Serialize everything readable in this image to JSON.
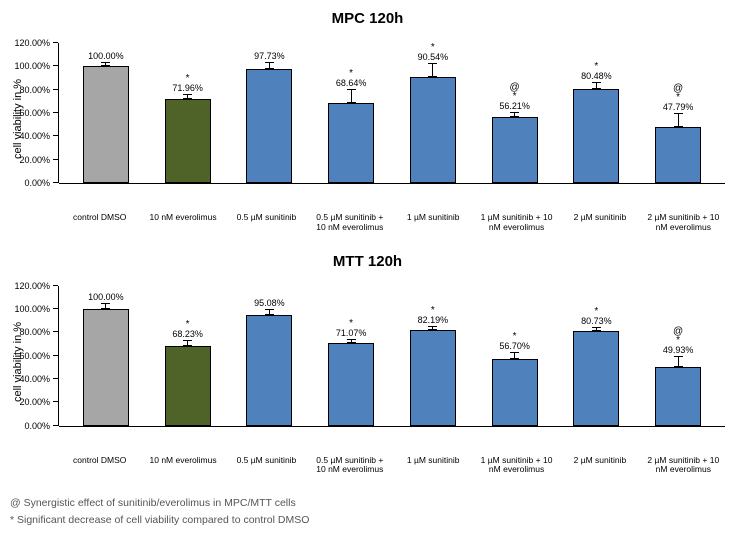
{
  "y_axis": {
    "label": "cell viability in %",
    "min": 0,
    "max": 120,
    "ticks": [
      0,
      20,
      40,
      60,
      80,
      100,
      120
    ],
    "tick_labels": [
      "0.00%",
      "20.00%",
      "40.00%",
      "60.00%",
      "80.00%",
      "100.00%",
      "120.00%"
    ]
  },
  "categories": [
    "control DMSO",
    "10 nM everolimus",
    "0.5 µM sunitinib",
    "0.5 µM sunitinib + 10 nM everolimus",
    "1 µM sunitinib",
    "1 µM sunitinib + 10 nM everolimus",
    "2 µM sunitinib",
    "2 µM sunitinib + 10 nM everolimus"
  ],
  "colors": {
    "control": "#a6a6a6",
    "everolimus": "#4f6228",
    "sunitinib": "#4f81bd",
    "combo": "#4f81bd",
    "bar_border": "#000000",
    "plot_bg": "#ffffff"
  },
  "charts": [
    {
      "title": "MPC 120h",
      "bars": [
        {
          "value": 100.0,
          "label": "100.00%",
          "err": 4,
          "star": false,
          "at": false,
          "color": "control"
        },
        {
          "value": 71.96,
          "label": "71.96%",
          "err": 4,
          "star": true,
          "at": false,
          "color": "everolimus"
        },
        {
          "value": 97.73,
          "label": "97.73%",
          "err": 6,
          "star": false,
          "at": false,
          "color": "sunitinib"
        },
        {
          "value": 68.64,
          "label": "68.64%",
          "err": 12,
          "star": true,
          "at": false,
          "color": "sunitinib"
        },
        {
          "value": 90.54,
          "label": "90.54%",
          "err": 12,
          "star": true,
          "at": false,
          "color": "sunitinib"
        },
        {
          "value": 56.21,
          "label": "56.21%",
          "err": 5,
          "star": true,
          "at": true,
          "color": "sunitinib"
        },
        {
          "value": 80.48,
          "label": "80.48%",
          "err": 6,
          "star": true,
          "at": false,
          "color": "sunitinib"
        },
        {
          "value": 47.79,
          "label": "47.79%",
          "err": 12,
          "star": true,
          "at": true,
          "color": "sunitinib"
        }
      ]
    },
    {
      "title": "MTT 120h",
      "bars": [
        {
          "value": 100.0,
          "label": "100.00%",
          "err": 5,
          "star": false,
          "at": false,
          "color": "control"
        },
        {
          "value": 68.23,
          "label": "68.23%",
          "err": 5,
          "star": true,
          "at": false,
          "color": "everolimus"
        },
        {
          "value": 95.08,
          "label": "95.08%",
          "err": 5,
          "star": false,
          "at": false,
          "color": "sunitinib"
        },
        {
          "value": 71.07,
          "label": "71.07%",
          "err": 3,
          "star": true,
          "at": false,
          "color": "sunitinib"
        },
        {
          "value": 82.19,
          "label": "82.19%",
          "err": 3,
          "star": true,
          "at": false,
          "color": "sunitinib"
        },
        {
          "value": 56.7,
          "label": "56.70%",
          "err": 6,
          "star": true,
          "at": false,
          "color": "sunitinib"
        },
        {
          "value": 80.73,
          "label": "80.73%",
          "err": 4,
          "star": true,
          "at": false,
          "color": "sunitinib"
        },
        {
          "value": 49.93,
          "label": "49.93%",
          "err": 10,
          "star": true,
          "at": true,
          "color": "sunitinib"
        }
      ]
    }
  ],
  "footnotes": [
    "@  Synergistic effect of sunitinib/everolimus in MPC/MTT cells",
    "*   Significant decrease of cell viability compared to control DMSO"
  ]
}
